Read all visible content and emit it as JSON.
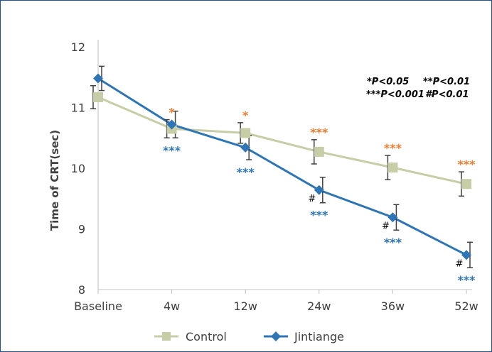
{
  "chart_data": {
    "type": "line",
    "title": "",
    "xlabel": "",
    "ylabel": "Time of CRT(sec)",
    "categories": [
      "Baseline",
      "4w",
      "12w",
      "24w",
      "36w",
      "52w"
    ],
    "ylim": [
      8,
      12
    ],
    "yticks": [
      "8",
      "9",
      "10",
      "11",
      "12"
    ],
    "grid": false,
    "legend_position": "bottom",
    "series": [
      {
        "name": "Control",
        "color": "#c6cda7",
        "marker": "square",
        "values": [
          11.17,
          10.65,
          10.58,
          10.27,
          10.01,
          9.74
        ],
        "error": [
          0.19,
          0.15,
          0.17,
          0.2,
          0.2,
          0.2
        ],
        "significance": [
          "",
          "*",
          "*",
          "***",
          "***",
          "***"
        ]
      },
      {
        "name": "Jintiange",
        "color": "#2e75b6",
        "marker": "diamond",
        "values": [
          11.48,
          10.72,
          10.34,
          9.64,
          9.19,
          8.57
        ],
        "error": [
          0.2,
          0.22,
          0.2,
          0.21,
          0.21,
          0.21
        ],
        "significance": [
          "",
          "***",
          "***",
          "***",
          "***",
          "***"
        ],
        "hash": [
          "",
          "",
          "",
          "#",
          "#",
          "#"
        ]
      }
    ],
    "significance_colors": {
      "Control": "#ed7d31",
      "Jintiange": "#2e75b6"
    },
    "annotations": [
      "*P<0.05",
      "**P<0.01",
      "***P<0.001",
      "#P<0.01"
    ]
  }
}
